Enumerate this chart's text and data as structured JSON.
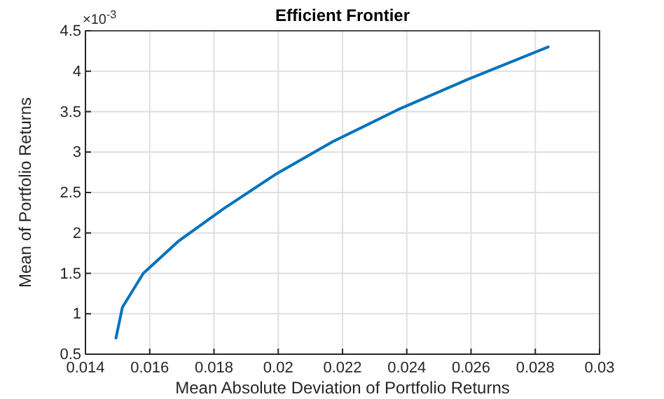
{
  "chart_data": {
    "type": "line",
    "title": "Efficient  Frontier",
    "xlabel": "Mean Absolute Deviation of Portfolio Returns",
    "ylabel": "Mean of Portfolio Returns",
    "annotations": [
      "×10$^{-3}$"
    ],
    "x": [
      0.01495,
      0.01515,
      0.0158,
      0.0169,
      0.0183,
      0.0199,
      0.0217,
      0.0237,
      0.0259,
      0.0284
    ],
    "series": [
      {
        "color": "#0072bd",
        "values": [
          0.7,
          1.08,
          1.5,
          1.9,
          2.3,
          2.72,
          3.13,
          3.52,
          3.9,
          4.3
        ]
      }
    ],
    "xlim": [
      0.014,
      0.03
    ],
    "xticks": [
      0.014,
      0.016,
      0.018,
      0.02,
      0.022,
      0.024,
      0.026,
      0.028,
      0.03
    ],
    "ylim": [
      0.5,
      4.5
    ],
    "yticks": [
      0.5,
      1,
      1.5,
      2,
      2.5,
      3,
      3.5,
      4,
      4.5
    ],
    "grid": true,
    "marker": "none",
    "line_style": "solid"
  }
}
